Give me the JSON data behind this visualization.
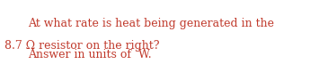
{
  "line1": "At what rate is heat being generated in the",
  "line2": "8.7 Ω resistor on the right?",
  "line3": "Answer in units of  W.",
  "text_color": "#c0392b",
  "background_color": "#ffffff",
  "fontsize": 9.0,
  "figsize": [
    3.45,
    0.72
  ],
  "dpi": 100
}
